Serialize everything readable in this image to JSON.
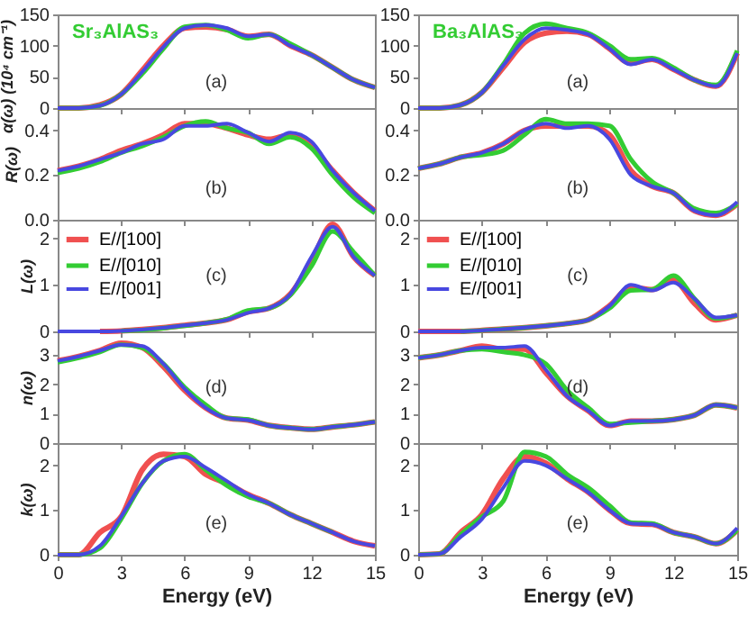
{
  "chart_data": [
    {
      "type": "line",
      "ylabel": "α(ω) (10⁴ cm⁻¹)",
      "annotations": [
        "Sr₃AlAS₃",
        "(a)"
      ],
      "xlim": [
        0,
        15
      ],
      "xticks": [
        0,
        3,
        6,
        9,
        12,
        15
      ],
      "ylim": [
        0,
        150
      ],
      "yticks": [
        0,
        50,
        100,
        150
      ],
      "tick_labels": "y",
      "x": [
        0,
        1,
        2,
        3,
        4,
        5,
        6,
        7,
        8,
        9,
        10,
        11,
        12,
        13,
        14,
        15
      ],
      "series": [
        {
          "color": "#f05050",
          "values": [
            0,
            0,
            5,
            22,
            60,
            100,
            128,
            130,
            126,
            115,
            118,
            100,
            85,
            65,
            45,
            33
          ]
        },
        {
          "color": "#33cc33",
          "values": [
            0,
            0,
            4,
            22,
            55,
            95,
            130,
            133,
            125,
            112,
            118,
            103,
            85,
            65,
            45,
            33
          ]
        },
        {
          "color": "#4848e0",
          "values": [
            0,
            0,
            4,
            22,
            58,
            98,
            128,
            133,
            128,
            115,
            118,
            100,
            85,
            65,
            45,
            33
          ]
        }
      ]
    },
    {
      "type": "line",
      "annotations": [
        "Ba₃AlAS₃",
        "(a)"
      ],
      "xlim": [
        0,
        15
      ],
      "xticks": [
        0,
        3,
        6,
        9,
        12,
        15
      ],
      "ylim": [
        0,
        150
      ],
      "yticks": [
        0,
        50,
        100,
        150
      ],
      "tick_labels": "y",
      "x": [
        0,
        1,
        2,
        3,
        4,
        5,
        6,
        7,
        8,
        9,
        10,
        11,
        12,
        13,
        14,
        15
      ],
      "series": [
        {
          "color": "#f05050",
          "values": [
            0,
            0,
            5,
            25,
            65,
            105,
            120,
            123,
            118,
            95,
            72,
            78,
            62,
            45,
            35,
            88
          ]
        },
        {
          "color": "#33cc33",
          "values": [
            0,
            0,
            5,
            25,
            70,
            120,
            135,
            128,
            120,
            100,
            78,
            80,
            65,
            45,
            37,
            92
          ]
        },
        {
          "color": "#4848e0",
          "values": [
            0,
            0,
            5,
            25,
            68,
            110,
            128,
            125,
            118,
            95,
            70,
            78,
            62,
            45,
            35,
            88
          ]
        }
      ]
    },
    {
      "type": "line",
      "ylabel": "R(ω)",
      "annotations": [
        "(b)"
      ],
      "xlim": [
        0,
        15
      ],
      "xticks": [
        0,
        3,
        6,
        9,
        12,
        15
      ],
      "ylim": [
        0,
        0.5
      ],
      "yticks": [
        {
          "value": 0,
          "label": "0.0"
        },
        0.2,
        0.4
      ],
      "tick_labels": "y",
      "x": [
        0,
        1,
        2,
        3,
        4,
        5,
        6,
        7,
        8,
        9,
        10,
        11,
        12,
        13,
        14,
        15
      ],
      "series": [
        {
          "color": "#f05050",
          "values": [
            0.22,
            0.24,
            0.27,
            0.31,
            0.34,
            0.38,
            0.43,
            0.43,
            0.41,
            0.38,
            0.36,
            0.38,
            0.33,
            0.22,
            0.12,
            0.04
          ]
        },
        {
          "color": "#33cc33",
          "values": [
            0.21,
            0.23,
            0.26,
            0.3,
            0.33,
            0.37,
            0.42,
            0.44,
            0.41,
            0.39,
            0.34,
            0.37,
            0.32,
            0.2,
            0.1,
            0.03
          ]
        },
        {
          "color": "#4848e0",
          "values": [
            0.22,
            0.24,
            0.27,
            0.3,
            0.34,
            0.36,
            0.42,
            0.42,
            0.43,
            0.39,
            0.35,
            0.39,
            0.35,
            0.22,
            0.12,
            0.04
          ]
        }
      ]
    },
    {
      "type": "line",
      "annotations": [
        "(b)"
      ],
      "xlim": [
        0,
        15
      ],
      "xticks": [
        0,
        3,
        6,
        9,
        12,
        15
      ],
      "ylim": [
        0,
        0.5
      ],
      "yticks": [
        {
          "value": 0,
          "label": "0.0"
        },
        0.2,
        0.4
      ],
      "tick_labels": "y",
      "x": [
        0,
        1,
        2,
        3,
        4,
        5,
        6,
        7,
        8,
        9,
        10,
        11,
        12,
        13,
        14,
        15
      ],
      "series": [
        {
          "color": "#f05050",
          "values": [
            0.23,
            0.25,
            0.28,
            0.3,
            0.34,
            0.4,
            0.42,
            0.42,
            0.42,
            0.38,
            0.22,
            0.15,
            0.12,
            0.04,
            0.02,
            0.07
          ]
        },
        {
          "color": "#33cc33",
          "values": [
            0.23,
            0.25,
            0.28,
            0.29,
            0.31,
            0.38,
            0.45,
            0.43,
            0.43,
            0.42,
            0.27,
            0.17,
            0.12,
            0.05,
            0.03,
            0.07
          ]
        },
        {
          "color": "#4848e0",
          "values": [
            0.23,
            0.25,
            0.28,
            0.3,
            0.34,
            0.4,
            0.43,
            0.41,
            0.42,
            0.36,
            0.2,
            0.15,
            0.12,
            0.04,
            0.02,
            0.08
          ]
        }
      ]
    },
    {
      "type": "line",
      "ylabel": "L(ω)",
      "annotations": [
        "(c)"
      ],
      "legend": "top left",
      "xlim": [
        0,
        15
      ],
      "xticks": [
        0,
        3,
        6,
        9,
        12,
        15
      ],
      "ylim": [
        0,
        2.4
      ],
      "yticks": [
        0,
        1,
        2
      ],
      "tick_labels": "y",
      "x": [
        0,
        1,
        2,
        3,
        4,
        5,
        6,
        7,
        8,
        9,
        10,
        11,
        12,
        13,
        14,
        15
      ],
      "series": [
        {
          "name": "E//[100]",
          "color": "#f05050",
          "values": [
            null,
            null,
            0,
            0.01,
            0.04,
            0.08,
            0.13,
            0.18,
            0.25,
            0.42,
            0.5,
            0.8,
            1.5,
            2.3,
            1.6,
            1.2
          ]
        },
        {
          "name": "E//[010]",
          "color": "#33cc33",
          "values": [
            null,
            null,
            null,
            0.01,
            0.03,
            0.07,
            0.12,
            0.18,
            0.26,
            0.45,
            0.5,
            0.78,
            1.4,
            2.15,
            1.7,
            1.2
          ]
        },
        {
          "name": "E//[001]",
          "color": "#4848e0",
          "values": [
            0,
            0,
            0,
            0.01,
            0.04,
            0.08,
            0.13,
            0.18,
            0.25,
            0.4,
            0.5,
            0.8,
            1.6,
            2.25,
            1.6,
            1.2
          ]
        }
      ]
    },
    {
      "type": "line",
      "annotations": [
        "(c)"
      ],
      "legend": "top left",
      "xlim": [
        0,
        15
      ],
      "xticks": [
        0,
        3,
        6,
        9,
        12,
        15
      ],
      "ylim": [
        0,
        2.4
      ],
      "yticks": [
        0,
        1,
        2
      ],
      "tick_labels": "y",
      "x": [
        0,
        1,
        2,
        3,
        4,
        5,
        6,
        7,
        8,
        9,
        10,
        11,
        12,
        13,
        14,
        15
      ],
      "series": [
        {
          "name": "E//[100]",
          "color": "#f05050",
          "values": [
            0,
            0,
            0,
            0.02,
            0.05,
            0.08,
            0.12,
            0.17,
            0.25,
            0.55,
            0.95,
            0.9,
            1.1,
            0.6,
            0.25,
            0.35
          ]
        },
        {
          "name": "E//[010]",
          "color": "#33cc33",
          "values": [
            null,
            null,
            0,
            0.02,
            0.05,
            0.08,
            0.12,
            0.17,
            0.25,
            0.5,
            0.88,
            0.9,
            1.2,
            0.7,
            0.28,
            0.35
          ]
        },
        {
          "name": "E//[001]",
          "color": "#4848e0",
          "values": [
            0,
            0,
            0,
            0.02,
            0.05,
            0.08,
            0.12,
            0.17,
            0.25,
            0.55,
            1.0,
            0.88,
            1.05,
            0.7,
            0.3,
            0.35
          ]
        }
      ]
    },
    {
      "type": "line",
      "ylabel": "n(ω)",
      "annotations": [
        "(d)"
      ],
      "xlim": [
        0,
        15
      ],
      "xticks": [
        0,
        3,
        6,
        9,
        12,
        15
      ],
      "ylim": [
        0,
        3.8
      ],
      "yticks": [
        0,
        1,
        2,
        3
      ],
      "tick_labels": "y",
      "x": [
        0,
        1,
        2,
        3,
        4,
        5,
        6,
        7,
        8,
        9,
        10,
        11,
        12,
        13,
        14,
        15
      ],
      "series": [
        {
          "color": "#f05050",
          "values": [
            2.8,
            2.95,
            3.15,
            3.4,
            3.25,
            2.6,
            1.8,
            1.2,
            0.85,
            0.78,
            0.6,
            0.52,
            0.47,
            0.55,
            0.62,
            0.72
          ]
        },
        {
          "color": "#33cc33",
          "values": [
            2.75,
            2.9,
            3.1,
            3.35,
            3.25,
            2.7,
            1.9,
            1.3,
            0.85,
            0.8,
            0.6,
            0.52,
            0.47,
            0.55,
            0.62,
            0.72
          ]
        },
        {
          "color": "#4848e0",
          "values": [
            2.8,
            2.95,
            3.15,
            3.35,
            3.3,
            2.7,
            1.85,
            1.2,
            0.85,
            0.78,
            0.6,
            0.52,
            0.47,
            0.55,
            0.62,
            0.72
          ]
        }
      ]
    },
    {
      "type": "line",
      "annotations": [
        "(d)"
      ],
      "xlim": [
        0,
        15
      ],
      "xticks": [
        0,
        3,
        6,
        9,
        12,
        15
      ],
      "ylim": [
        0,
        3.8
      ],
      "yticks": [
        0,
        1,
        2,
        3
      ],
      "tick_labels": "y",
      "x": [
        0,
        1,
        2,
        3,
        4,
        5,
        6,
        7,
        8,
        9,
        10,
        11,
        12,
        13,
        14,
        15
      ],
      "series": [
        {
          "color": "#f05050",
          "values": [
            2.9,
            3.0,
            3.15,
            3.3,
            3.2,
            3.2,
            2.4,
            1.6,
            1.1,
            0.6,
            0.75,
            0.75,
            0.8,
            0.95,
            1.3,
            1.2
          ]
        },
        {
          "color": "#33cc33",
          "values": [
            2.9,
            3.0,
            3.15,
            3.2,
            3.1,
            3.0,
            2.7,
            1.8,
            1.2,
            0.65,
            0.7,
            0.75,
            0.8,
            0.95,
            1.3,
            1.2
          ]
        },
        {
          "color": "#4848e0",
          "values": [
            2.9,
            3.0,
            3.15,
            3.25,
            3.25,
            3.3,
            2.5,
            1.6,
            1.1,
            0.6,
            0.75,
            0.75,
            0.8,
            0.95,
            1.3,
            1.2
          ]
        }
      ]
    },
    {
      "type": "line",
      "ylabel": "k(ω)",
      "xlabel": "Energy (eV)",
      "annotations": [
        "(e)"
      ],
      "xlim": [
        0,
        15
      ],
      "xticks": [
        0,
        3,
        6,
        9,
        12,
        15
      ],
      "ylim": [
        0,
        2.5
      ],
      "yticks": [
        0,
        1,
        2
      ],
      "x": [
        0,
        1,
        2,
        3,
        4,
        5,
        6,
        7,
        8,
        9,
        10,
        11,
        12,
        13,
        14,
        15
      ],
      "series": [
        {
          "color": "#f05050",
          "values": [
            0,
            0,
            0.5,
            0.85,
            1.9,
            2.25,
            2.2,
            1.8,
            1.6,
            1.35,
            1.15,
            0.9,
            0.7,
            0.5,
            0.3,
            0.2
          ]
        },
        {
          "color": "#33cc33",
          "values": [
            0,
            0,
            0.15,
            0.8,
            1.6,
            2.1,
            2.25,
            1.9,
            1.55,
            1.3,
            1.15,
            0.9,
            0.7,
            0.5,
            null,
            null
          ]
        },
        {
          "color": "#4848e0",
          "values": [
            0,
            0,
            0.2,
            0.85,
            1.6,
            2.1,
            2.2,
            1.95,
            1.65,
            1.35,
            1.15,
            0.9,
            0.7,
            0.5,
            0.3,
            0.2
          ]
        }
      ]
    },
    {
      "type": "line",
      "xlabel": "Energy (eV)",
      "annotations": [
        "(e)"
      ],
      "xlim": [
        0,
        15
      ],
      "xticks": [
        0,
        3,
        6,
        9,
        12,
        15
      ],
      "ylim": [
        0,
        2.5
      ],
      "yticks": [
        0,
        1,
        2
      ],
      "x": [
        0,
        1,
        2,
        3,
        4,
        5,
        6,
        7,
        8,
        9,
        10,
        11,
        12,
        13,
        14,
        15
      ],
      "series": [
        {
          "color": "#f05050",
          "values": [
            0,
            0.02,
            0.5,
            0.9,
            1.7,
            2.2,
            2.05,
            1.7,
            1.4,
            1.0,
            0.7,
            0.68,
            0.5,
            0.4,
            0.25,
            0.55
          ]
        },
        {
          "color": "#33cc33",
          "values": [
            0,
            0.02,
            0.45,
            0.85,
            1.2,
            2.3,
            2.2,
            1.8,
            1.5,
            1.1,
            0.72,
            0.7,
            0.5,
            0.4,
            0.25,
            0.55
          ]
        },
        {
          "color": "#4848e0",
          "values": [
            0,
            0.02,
            0.4,
            0.8,
            1.5,
            2.1,
            2.0,
            1.7,
            1.4,
            1.0,
            0.7,
            0.68,
            0.5,
            0.4,
            0.25,
            0.6
          ]
        }
      ]
    }
  ]
}
